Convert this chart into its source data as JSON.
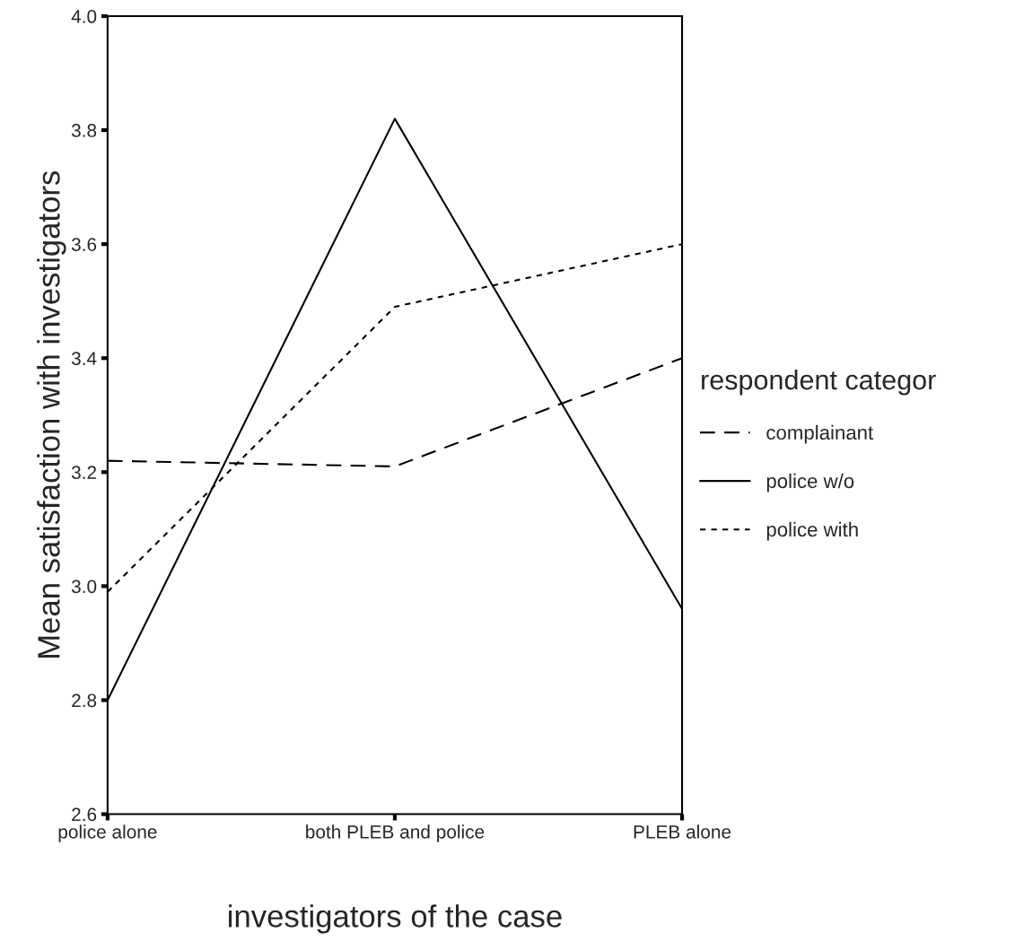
{
  "chart_data": {
    "type": "line",
    "xlabel": "investigators of the case",
    "ylabel": "Mean satisfaction with investigators",
    "legend_title": "respondent categor",
    "categories": [
      "police alone",
      "both PLEB and police",
      "PLEB alone"
    ],
    "series": [
      {
        "name": "complainant",
        "color": "#000000",
        "line_style": "dashed",
        "values": [
          3.22,
          3.21,
          3.4
        ]
      },
      {
        "name": "police w/o",
        "color": "#000000",
        "line_style": "solid",
        "values": [
          2.8,
          3.82,
          2.96
        ]
      },
      {
        "name": "police with",
        "color": "#000000",
        "line_style": "dotted",
        "values": [
          2.99,
          3.49,
          3.6
        ]
      }
    ],
    "ylim": [
      2.6,
      4.0
    ],
    "yticks": [
      2.6,
      2.8,
      {
        "value": 3,
        "label": "3.0"
      },
      3.2,
      3.4,
      3.6,
      3.8,
      {
        "value": 4,
        "label": "4.0"
      }
    ],
    "grid": false,
    "legend": "right",
    "marker": "none"
  }
}
